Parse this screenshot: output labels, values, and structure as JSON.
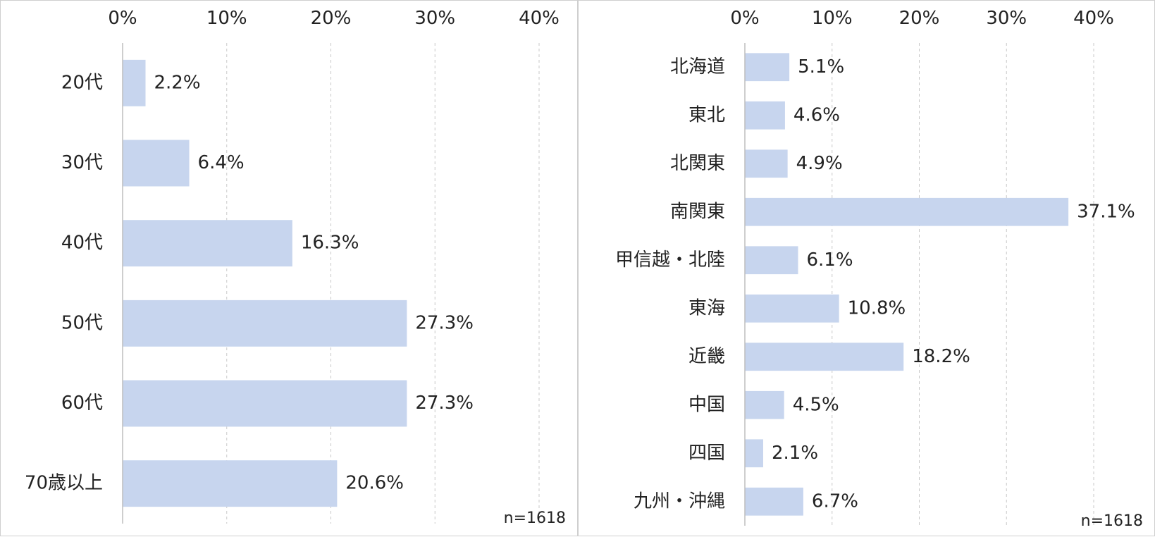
{
  "chart_data": [
    {
      "type": "bar",
      "orientation": "horizontal",
      "categories": [
        "20代",
        "30代",
        "40代",
        "50代",
        "60代",
        "70歳以上"
      ],
      "values": [
        2.2,
        6.4,
        16.3,
        27.3,
        27.3,
        20.6
      ],
      "value_labels": [
        "2.2%",
        "6.4%",
        "16.3%",
        "27.3%",
        "27.3%",
        "20.6%"
      ],
      "ticks": [
        "0%",
        "10%",
        "20%",
        "30%",
        "40%"
      ],
      "xlim": [
        0,
        40
      ],
      "grid": true,
      "note": "n=1618",
      "bar_color": "#c7d5ee"
    },
    {
      "type": "bar",
      "orientation": "horizontal",
      "categories": [
        "北海道",
        "東北",
        "北関東",
        "南関東",
        "甲信越・北陸",
        "東海",
        "近畿",
        "中国",
        "四国",
        "九州・沖縄"
      ],
      "values": [
        5.1,
        4.6,
        4.9,
        37.1,
        6.1,
        10.8,
        18.2,
        4.5,
        2.1,
        6.7
      ],
      "value_labels": [
        "5.1%",
        "4.6%",
        "4.9%",
        "37.1%",
        "6.1%",
        "10.8%",
        "18.2%",
        "4.5%",
        "2.1%",
        "6.7%"
      ],
      "ticks": [
        "0%",
        "10%",
        "20%",
        "30%",
        "40%"
      ],
      "xlim": [
        0,
        40
      ],
      "grid": true,
      "note": "n=1618",
      "bar_color": "#c7d5ee"
    }
  ]
}
